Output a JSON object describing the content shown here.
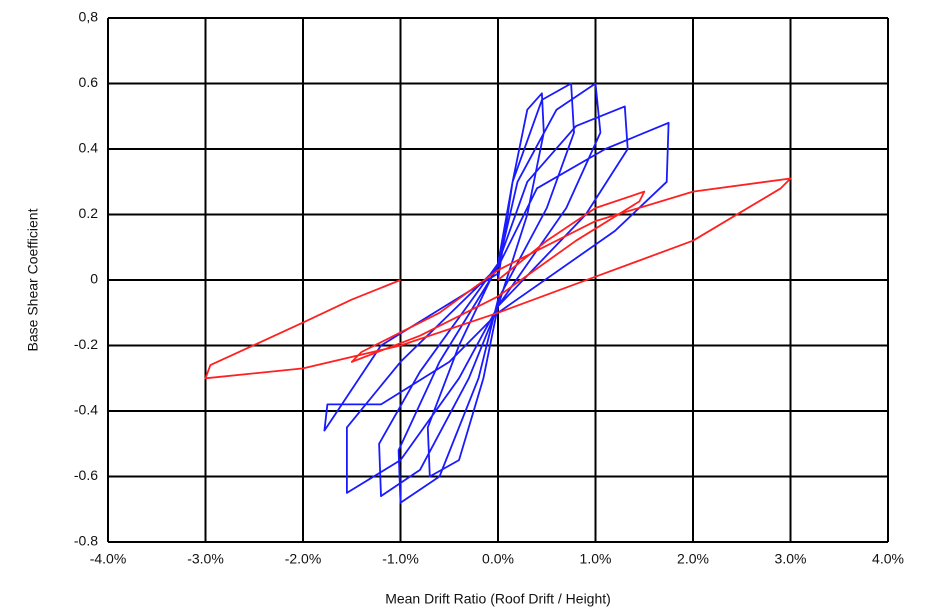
{
  "chart_data": {
    "type": "line",
    "x_label": "Mean Drift Ratio (Roof Drift / Height)",
    "y_label": "Base Shear Coefficient",
    "xlim": [
      -4,
      4
    ],
    "ylim": [
      -0.8,
      0.8
    ],
    "xticks": [
      {
        "value": -4,
        "label": "-4.0%"
      },
      {
        "value": -3,
        "label": "-3.0%"
      },
      {
        "value": -2,
        "label": "-2.0%"
      },
      {
        "value": -1,
        "label": "-1.0%"
      },
      {
        "value": 0,
        "label": "0.0%"
      },
      {
        "value": 1,
        "label": "1.0%"
      },
      {
        "value": 2,
        "label": "2.0%"
      },
      {
        "value": 3,
        "label": "3.0%"
      },
      {
        "value": 4,
        "label": "4.0%"
      }
    ],
    "yticks": [
      -0.8,
      -0.6,
      -0.4,
      -0.2,
      0,
      0.2,
      0.4,
      0.6,
      {
        "value": 0.8,
        "label": "0,8"
      }
    ],
    "grid": true,
    "series": [
      {
        "color": "#1a1aff",
        "x": [
          0,
          0.15,
          0.3,
          0.45,
          0.47,
          0.3,
          0,
          -0.15,
          -0.4,
          -0.7,
          -0.72,
          -0.4,
          0,
          0.15,
          0.45,
          0.75,
          0.78,
          0.5,
          0,
          -0.2,
          -0.6,
          -1.0,
          -1.02,
          -0.6,
          0,
          0.2,
          0.6,
          1.0,
          1.05,
          0.7,
          0,
          -0.3,
          -0.8,
          -1.2,
          -1.22,
          -0.8,
          0,
          0.3,
          0.8,
          1.3,
          1.33,
          0.9,
          0,
          -0.4,
          -1.0,
          -1.55,
          -1.55,
          -1.0,
          0,
          0.4,
          1.1,
          1.75,
          1.73,
          1.2,
          0,
          -0.5,
          -1.2,
          -1.75,
          -1.78,
          -1.2,
          0
        ],
        "values": [
          0,
          0.3,
          0.52,
          0.57,
          0.45,
          0.2,
          -0.08,
          -0.3,
          -0.55,
          -0.6,
          -0.45,
          -0.2,
          0.05,
          0.3,
          0.55,
          0.6,
          0.45,
          0.22,
          -0.06,
          -0.3,
          -0.6,
          -0.68,
          -0.52,
          -0.25,
          0.04,
          0.3,
          0.52,
          0.6,
          0.45,
          0.22,
          -0.08,
          -0.3,
          -0.58,
          -0.66,
          -0.5,
          -0.28,
          0.05,
          0.3,
          0.47,
          0.53,
          0.4,
          0.2,
          -0.08,
          -0.3,
          -0.55,
          -0.65,
          -0.45,
          -0.25,
          0.04,
          0.28,
          0.4,
          0.48,
          0.3,
          0.15,
          -0.1,
          -0.25,
          -0.38,
          -0.38,
          -0.46,
          -0.2,
          0.02
        ]
      },
      {
        "color": "#ff2020",
        "x": [
          0,
          0.5,
          1.0,
          1.5,
          1.45,
          0.8,
          0,
          -0.8,
          -1.5,
          -1.4,
          -0.6,
          0,
          1.0,
          2.0,
          3.0,
          2.9,
          2.0,
          1.0,
          0,
          -1.0,
          -2.0,
          -3.0,
          -2.95,
          -2.0,
          -1.5,
          -1.0
        ],
        "values": [
          0,
          0.12,
          0.22,
          0.27,
          0.24,
          0.12,
          -0.05,
          -0.17,
          -0.25,
          -0.22,
          -0.1,
          0.03,
          0.18,
          0.27,
          0.31,
          0.28,
          0.12,
          0.01,
          -0.1,
          -0.2,
          -0.27,
          -0.3,
          -0.26,
          -0.13,
          -0.06,
          0
        ]
      }
    ]
  }
}
